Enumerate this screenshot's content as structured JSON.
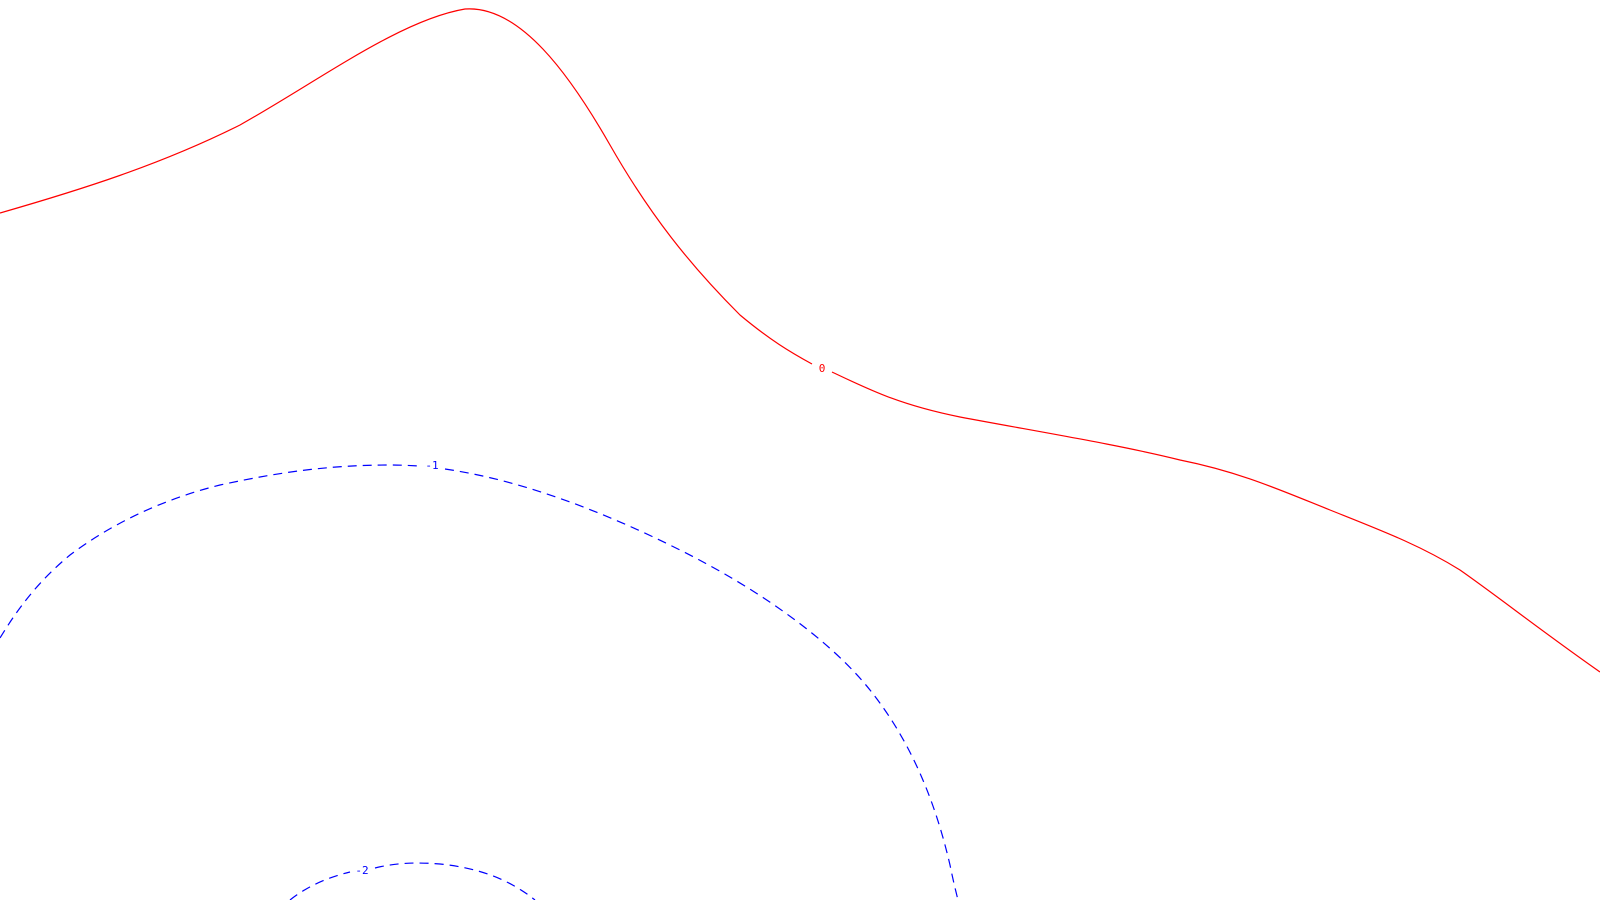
{
  "map": {
    "background_color": "#ffffff",
    "contours": [
      {
        "level_label": "0",
        "color": "#ff0000",
        "style": "solid"
      },
      {
        "level_label": "-1",
        "color": "#0000ff",
        "style": "dashed"
      },
      {
        "level_label": "-2",
        "color": "#0000ff",
        "style": "dashed"
      }
    ]
  }
}
